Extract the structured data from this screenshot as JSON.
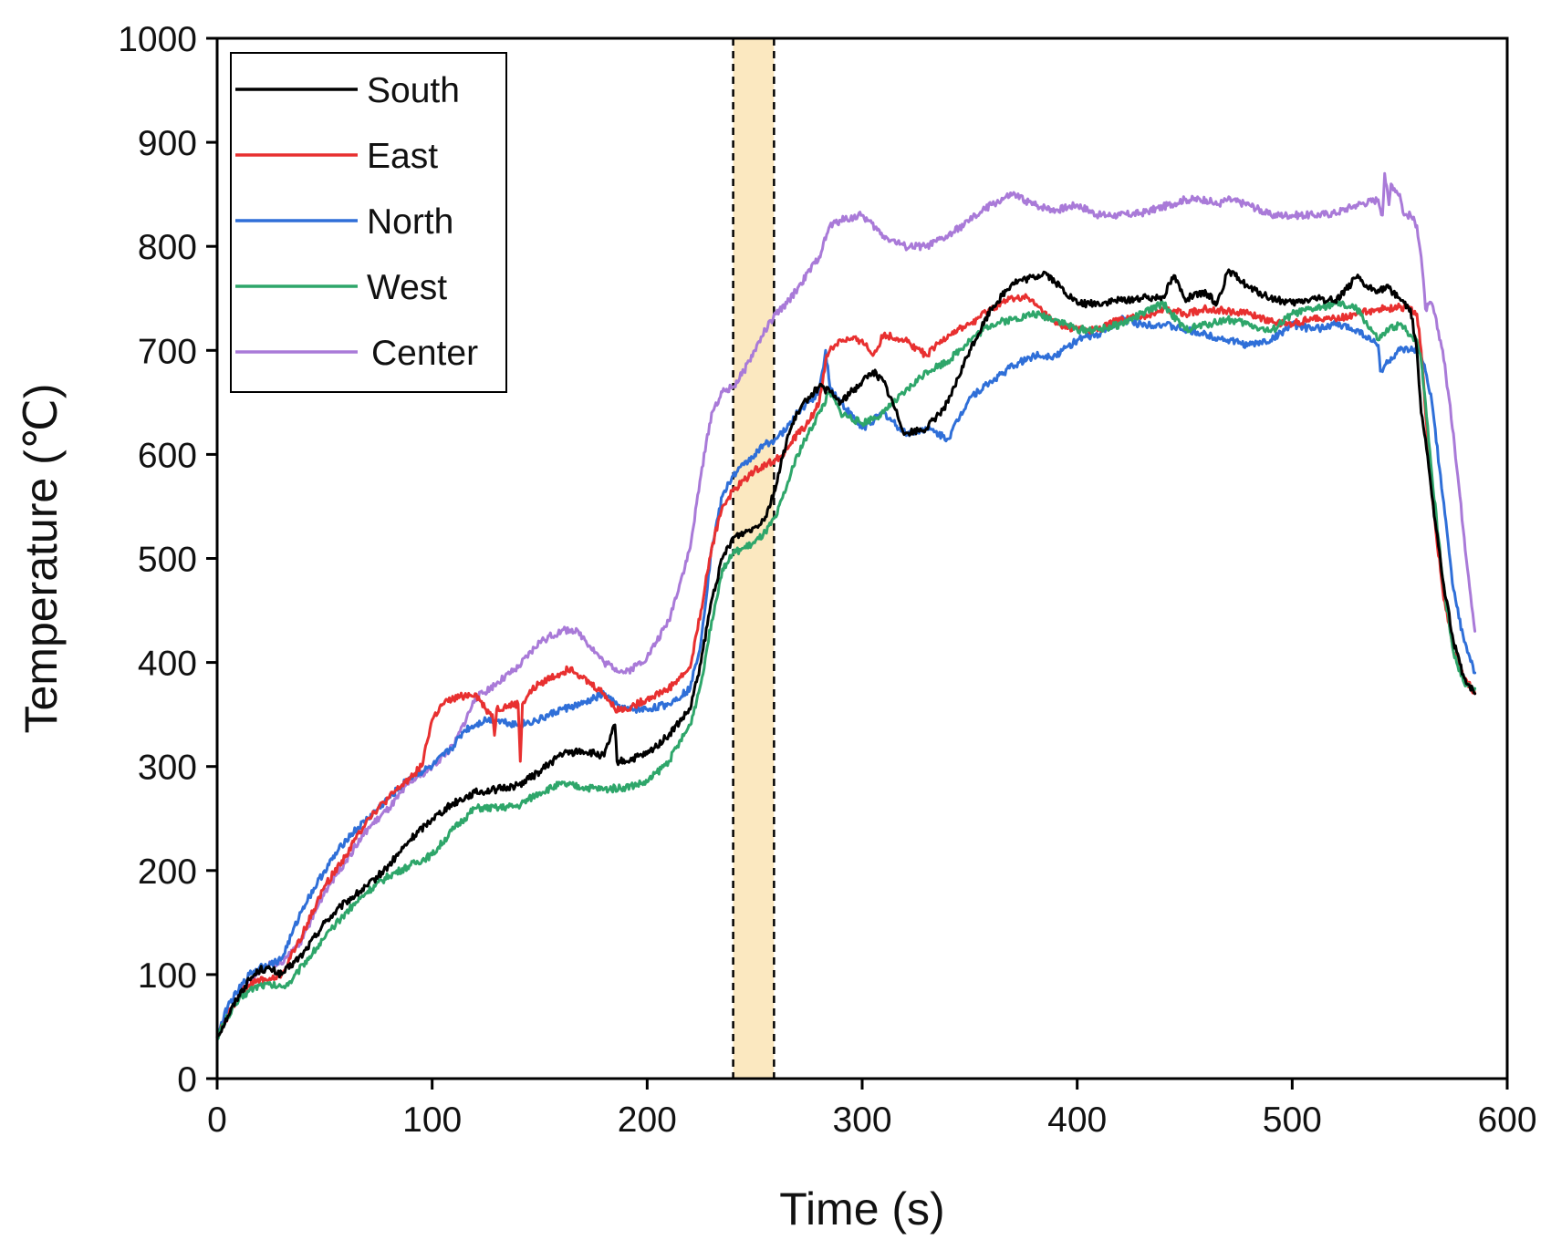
{
  "chart_data": {
    "type": "line",
    "title": "",
    "xlabel": "Time (s)",
    "ylabel": "Temperature (℃)",
    "xlim": [
      0,
      600
    ],
    "ylim": [
      0,
      1000
    ],
    "xticks": [
      0,
      100,
      200,
      300,
      400,
      500,
      600
    ],
    "yticks": [
      0,
      100,
      200,
      300,
      400,
      500,
      600,
      700,
      800,
      900,
      1000
    ],
    "legend_position": "top-left",
    "shaded_band": {
      "x_start": 240,
      "x_end": 259,
      "color": "#fbe8c0",
      "edge_style": "dashed"
    },
    "series": [
      {
        "name": "South",
        "color": "#000000",
        "x": [
          0,
          5,
          10,
          15,
          20,
          25,
          30,
          40,
          50,
          60,
          70,
          80,
          90,
          100,
          110,
          120,
          130,
          140,
          150,
          160,
          170,
          180,
          185,
          186,
          190,
          200,
          210,
          220,
          225,
          230,
          235,
          240,
          245,
          250,
          255,
          260,
          265,
          270,
          275,
          280,
          285,
          290,
          300,
          305,
          310,
          320,
          330,
          340,
          350,
          360,
          370,
          380,
          385,
          390,
          400,
          410,
          420,
          430,
          440,
          445,
          450,
          460,
          465,
          470,
          475,
          480,
          490,
          500,
          510,
          520,
          530,
          535,
          540,
          545,
          550,
          555,
          558,
          560,
          562,
          565,
          570,
          575,
          580,
          585
        ],
        "y": [
          40,
          60,
          80,
          95,
          105,
          105,
          100,
          120,
          150,
          170,
          185,
          205,
          230,
          250,
          265,
          275,
          278,
          282,
          295,
          312,
          315,
          310,
          340,
          305,
          305,
          312,
          330,
          355,
          400,
          460,
          500,
          520,
          525,
          530,
          540,
          570,
          615,
          640,
          655,
          665,
          660,
          650,
          670,
          680,
          670,
          620,
          625,
          650,
          700,
          740,
          765,
          770,
          775,
          765,
          745,
          745,
          748,
          750,
          752,
          772,
          750,
          755,
          745,
          775,
          770,
          760,
          750,
          745,
          750,
          748,
          770,
          760,
          758,
          760,
          750,
          740,
          700,
          640,
          615,
          560,
          480,
          420,
          385,
          370
        ]
      },
      {
        "name": "East",
        "color": "#e83030",
        "x": [
          0,
          5,
          10,
          15,
          20,
          25,
          30,
          40,
          50,
          60,
          70,
          80,
          90,
          95,
          100,
          105,
          110,
          115,
          120,
          125,
          128,
          129,
          130,
          135,
          140,
          141,
          142,
          145,
          150,
          160,
          165,
          170,
          180,
          185,
          190,
          200,
          210,
          220,
          225,
          230,
          235,
          240,
          245,
          250,
          255,
          260,
          265,
          270,
          275,
          280,
          283,
          285,
          290,
          300,
          305,
          310,
          320,
          330,
          340,
          350,
          360,
          370,
          375,
          380,
          390,
          400,
          410,
          420,
          430,
          440,
          450,
          460,
          470,
          480,
          490,
          500,
          510,
          520,
          530,
          540,
          545,
          550,
          555,
          558,
          560,
          562,
          565,
          570,
          575,
          580,
          585
        ],
        "y": [
          40,
          60,
          80,
          90,
          95,
          95,
          100,
          140,
          185,
          215,
          250,
          270,
          290,
          300,
          345,
          360,
          365,
          368,
          370,
          355,
          350,
          330,
          355,
          358,
          360,
          305,
          360,
          370,
          380,
          390,
          395,
          385,
          370,
          355,
          355,
          365,
          375,
          395,
          450,
          510,
          550,
          565,
          575,
          585,
          590,
          595,
          605,
          620,
          630,
          650,
          690,
          700,
          710,
          710,
          695,
          715,
          710,
          695,
          715,
          725,
          740,
          750,
          752,
          745,
          725,
          720,
          720,
          730,
          732,
          740,
          735,
          740,
          738,
          735,
          728,
          725,
          732,
          730,
          735,
          740,
          740,
          742,
          740,
          735,
          700,
          640,
          560,
          470,
          410,
          385,
          370
        ]
      },
      {
        "name": "North",
        "color": "#2f6fd8",
        "x": [
          0,
          5,
          10,
          15,
          20,
          25,
          30,
          35,
          40,
          50,
          60,
          70,
          80,
          90,
          100,
          110,
          115,
          120,
          125,
          130,
          140,
          150,
          160,
          170,
          180,
          185,
          190,
          200,
          210,
          220,
          225,
          230,
          235,
          240,
          245,
          250,
          255,
          260,
          265,
          270,
          275,
          280,
          283,
          285,
          290,
          300,
          310,
          320,
          330,
          340,
          350,
          360,
          370,
          380,
          390,
          400,
          410,
          420,
          430,
          440,
          450,
          460,
          470,
          480,
          490,
          500,
          510,
          520,
          530,
          540,
          541,
          545,
          550,
          555,
          558,
          560,
          562,
          565,
          570,
          575,
          580,
          585
        ],
        "y": [
          40,
          70,
          85,
          100,
          108,
          110,
          115,
          140,
          165,
          200,
          230,
          250,
          270,
          290,
          300,
          320,
          335,
          340,
          345,
          345,
          340,
          345,
          355,
          360,
          370,
          360,
          355,
          355,
          360,
          375,
          420,
          510,
          560,
          580,
          590,
          600,
          610,
          615,
          625,
          640,
          650,
          660,
          700,
          665,
          650,
          625,
          640,
          620,
          625,
          615,
          655,
          670,
          685,
          695,
          695,
          710,
          715,
          730,
          725,
          725,
          720,
          715,
          710,
          705,
          710,
          725,
          720,
          725,
          720,
          705,
          680,
          690,
          700,
          700,
          700,
          695,
          680,
          650,
          560,
          470,
          420,
          390
        ]
      },
      {
        "name": "West",
        "color": "#2ea66a",
        "x": [
          0,
          5,
          10,
          15,
          20,
          25,
          30,
          35,
          40,
          50,
          60,
          70,
          80,
          90,
          100,
          110,
          120,
          130,
          140,
          150,
          160,
          170,
          180,
          190,
          200,
          210,
          220,
          225,
          230,
          235,
          240,
          245,
          250,
          255,
          260,
          265,
          270,
          275,
          280,
          285,
          290,
          300,
          310,
          320,
          330,
          340,
          350,
          360,
          370,
          380,
          390,
          400,
          410,
          420,
          430,
          440,
          450,
          460,
          470,
          480,
          490,
          500,
          510,
          520,
          530,
          540,
          545,
          550,
          555,
          558,
          560,
          562,
          565,
          570,
          575,
          580,
          585
        ],
        "y": [
          40,
          60,
          75,
          85,
          90,
          90,
          88,
          95,
          110,
          135,
          160,
          180,
          195,
          205,
          215,
          240,
          260,
          260,
          262,
          275,
          283,
          280,
          278,
          280,
          285,
          305,
          340,
          380,
          440,
          490,
          505,
          510,
          515,
          525,
          540,
          570,
          600,
          620,
          640,
          660,
          640,
          630,
          640,
          660,
          680,
          690,
          710,
          725,
          730,
          735,
          730,
          720,
          720,
          725,
          735,
          745,
          720,
          725,
          730,
          725,
          718,
          735,
          740,
          745,
          740,
          710,
          720,
          725,
          715,
          710,
          690,
          650,
          580,
          480,
          410,
          380,
          375
        ]
      },
      {
        "name": "Center",
        "color": "#a97ad8",
        "x": [
          0,
          5,
          10,
          15,
          20,
          25,
          30,
          40,
          50,
          60,
          70,
          80,
          90,
          100,
          110,
          120,
          130,
          140,
          150,
          160,
          165,
          170,
          180,
          190,
          200,
          210,
          220,
          225,
          230,
          235,
          240,
          245,
          250,
          255,
          260,
          265,
          270,
          280,
          285,
          290,
          300,
          310,
          320,
          330,
          340,
          350,
          360,
          370,
          380,
          390,
          400,
          410,
          420,
          430,
          440,
          450,
          460,
          465,
          470,
          480,
          490,
          500,
          510,
          520,
          530,
          540,
          542,
          543,
          545,
          546,
          550,
          552,
          555,
          558,
          560,
          562,
          565,
          570,
          575,
          580,
          585
        ],
        "y": [
          40,
          60,
          80,
          95,
          105,
          110,
          110,
          135,
          180,
          210,
          240,
          260,
          285,
          300,
          320,
          365,
          380,
          395,
          420,
          430,
          432,
          425,
          400,
          390,
          405,
          440,
          510,
          580,
          640,
          660,
          665,
          680,
          700,
          720,
          735,
          745,
          760,
          790,
          820,
          825,
          830,
          810,
          800,
          800,
          810,
          825,
          840,
          850,
          840,
          835,
          840,
          830,
          830,
          832,
          838,
          845,
          845,
          840,
          845,
          840,
          830,
          830,
          830,
          832,
          840,
          845,
          830,
          870,
          840,
          860,
          850,
          830,
          830,
          820,
          790,
          740,
          745,
          700,
          620,
          520,
          430
        ]
      }
    ]
  }
}
